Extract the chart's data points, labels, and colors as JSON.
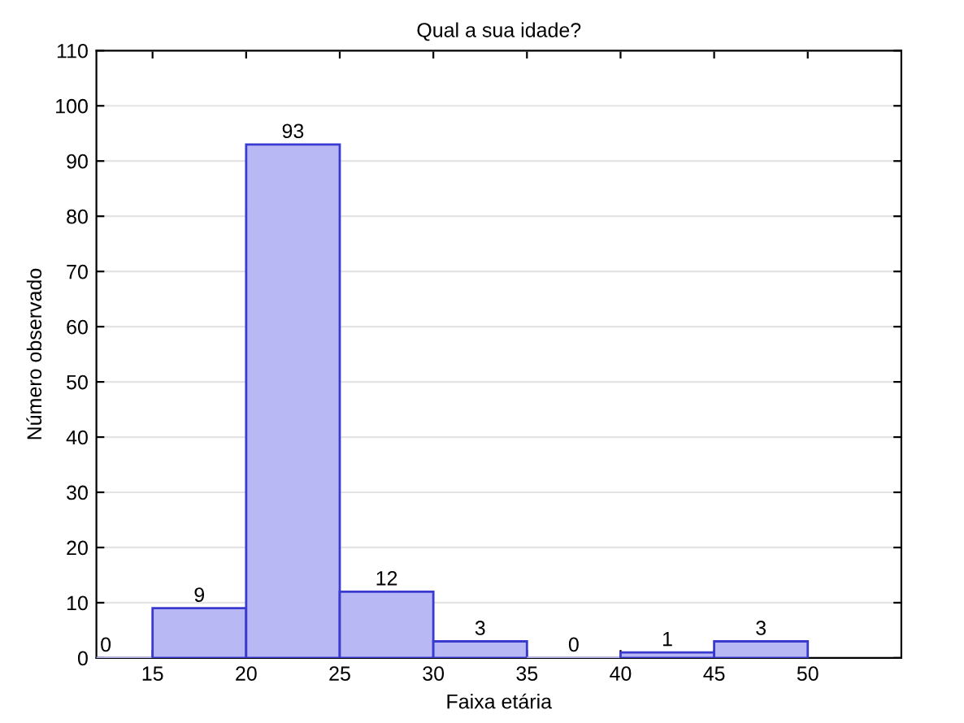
{
  "chart_data": {
    "type": "histogram",
    "title": "Qual a sua idade?",
    "xlabel": "Faixa etária",
    "ylabel": "Número observado",
    "bins": [
      10,
      15,
      20,
      25,
      30,
      35,
      40,
      45,
      50
    ],
    "values": [
      0,
      9,
      93,
      12,
      3,
      0,
      1,
      3
    ],
    "color": "#b8b8f4",
    "xlim": [
      12,
      55
    ],
    "xticks": [
      15,
      20,
      25,
      30,
      35,
      40,
      45,
      50
    ],
    "ylim": [
      0,
      110
    ],
    "yticks": [
      0,
      10,
      20,
      30,
      40,
      50,
      60,
      70,
      80,
      90,
      100,
      110
    ],
    "grid": "y",
    "data_labels": true
  }
}
